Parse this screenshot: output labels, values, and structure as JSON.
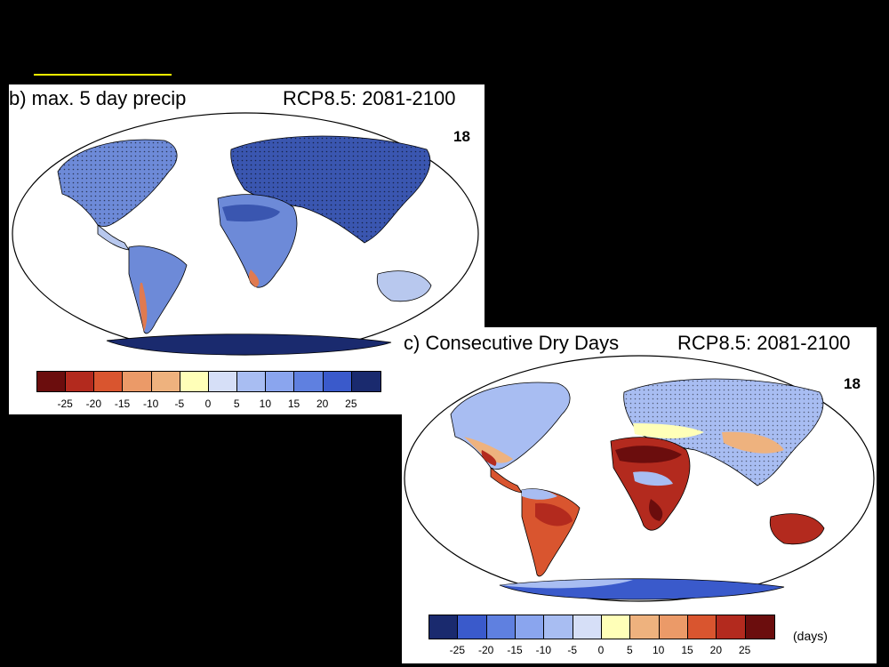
{
  "accent_color": "#f2f200",
  "panels": [
    {
      "id": "b",
      "label": "b) max. 5 day precip",
      "scenario": "RCP8.5: 2081-2100",
      "model_count": "18",
      "colorbar": {
        "colors": [
          "#6b0d0d",
          "#b32a1e",
          "#d9552f",
          "#eb9a68",
          "#eeb27e",
          "#ffffb8",
          "#d6dff7",
          "#a8bdf2",
          "#8aa5ee",
          "#5f80e0",
          "#3a5acb",
          "#1a2a6e"
        ],
        "tick_labels": [
          "-25",
          "-20",
          "-15",
          "-10",
          "-5",
          "0",
          "5",
          "10",
          "15",
          "20",
          "25"
        ],
        "units": ""
      },
      "map": {
        "land_color": "#6d8ad8",
        "dark_color": "#3a56b0",
        "light_color": "#b8c8ee",
        "ocean": "#ffffff"
      }
    },
    {
      "id": "c",
      "label": "c) Consecutive Dry Days",
      "scenario": "RCP8.5: 2081-2100",
      "model_count": "18",
      "colorbar": {
        "colors": [
          "#1a2a6e",
          "#3a5acb",
          "#5f80e0",
          "#8aa5ee",
          "#a8bdf2",
          "#d6dff7",
          "#ffffb8",
          "#eeb27e",
          "#eb9a68",
          "#d9552f",
          "#b32a1e",
          "#6b0d0d"
        ],
        "tick_labels": [
          "-25",
          "-20",
          "-15",
          "-10",
          "-5",
          "0",
          "5",
          "10",
          "15",
          "20",
          "25"
        ],
        "units": "(days)"
      },
      "map": {
        "land_color": "#a8bdf2",
        "dark_color": "#b32a1e",
        "light_color": "#eeb27e",
        "ocean": "#ffffff"
      }
    }
  ]
}
